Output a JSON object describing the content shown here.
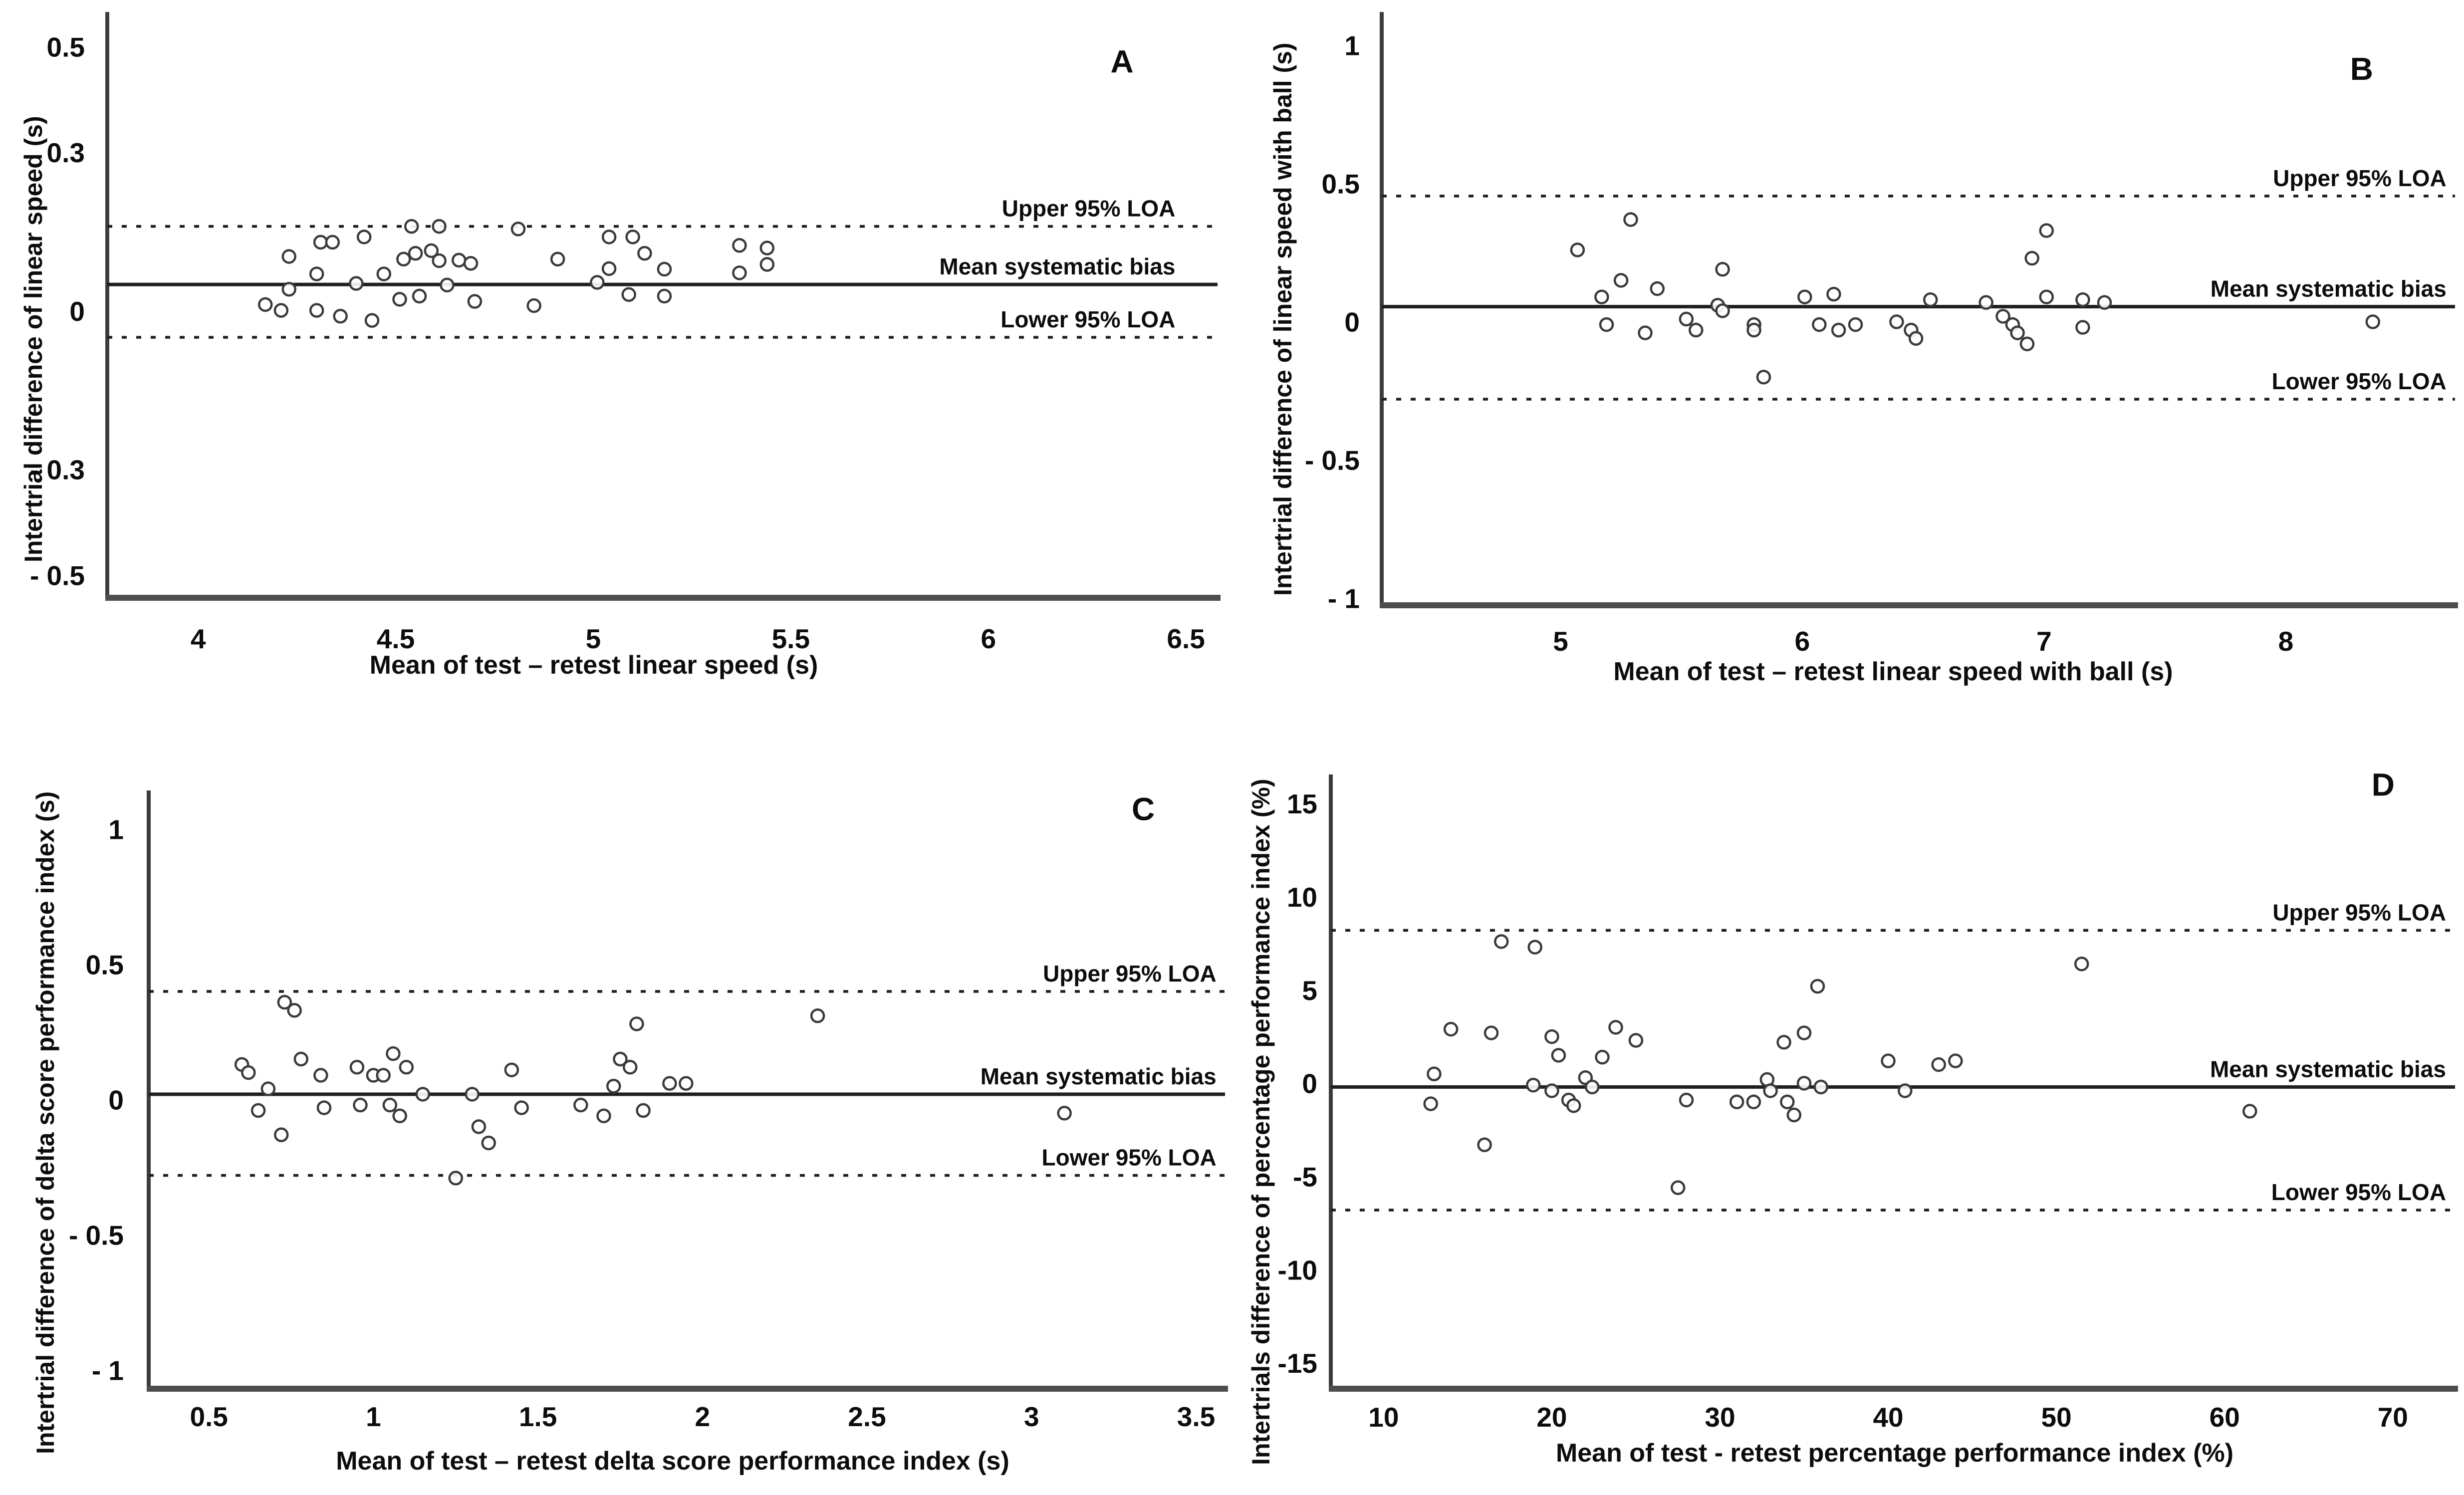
{
  "figure": {
    "background": "#ffffff",
    "text_color": "#0c0c0c",
    "line_color": "#222222",
    "point_stroke": "#3a3a3a",
    "annotation_labels": [
      "Upper 95% LOA",
      "Mean systematic bias",
      "Lower 95% LOA"
    ]
  },
  "panels": [
    {
      "id": "A",
      "letter": "A",
      "y_label": "Intertrial difference of linear speed (s)",
      "x_label": "Mean of test – retest linear speed (s)",
      "chart_data": {
        "type": "scatter",
        "xlabel": "Mean of test – retest linear speed (s)",
        "ylabel": "Intertrial difference of linear speed (s)",
        "xlim": [
          3.77,
          6.58
        ],
        "ylim": [
          -0.54,
          0.56
        ],
        "x_ticks": [
          4,
          4.5,
          5,
          5.5,
          6,
          6.5
        ],
        "x_tick_labels": [
          "4",
          "4.5",
          "5",
          "5.5",
          "6",
          "6.5"
        ],
        "y_ticks": [
          0.5,
          0.3,
          0,
          -0.3,
          -0.5
        ],
        "y_tick_labels": [
          "0.5",
          "0.3",
          "0",
          "- 0.3",
          "- 0.5"
        ],
        "grid": false,
        "upper_loa": {
          "label": "Upper 95% LOA",
          "value": 0.16
        },
        "mean_bias": {
          "label": "Mean systematic bias",
          "value": 0.05
        },
        "lower_loa": {
          "label": "Lower 95% LOA",
          "value": -0.05
        },
        "points": [
          [
            4.17,
            0.012
          ],
          [
            4.21,
            0.001
          ],
          [
            4.23,
            0.103
          ],
          [
            4.23,
            0.041
          ],
          [
            4.3,
            0.07
          ],
          [
            4.3,
            0.001
          ],
          [
            4.31,
            0.13
          ],
          [
            4.34,
            0.13
          ],
          [
            4.36,
            -0.01
          ],
          [
            4.4,
            0.052
          ],
          [
            4.42,
            0.14
          ],
          [
            4.44,
            -0.018
          ],
          [
            4.47,
            0.07
          ],
          [
            4.51,
            0.022
          ],
          [
            4.52,
            0.098
          ],
          [
            4.54,
            0.16
          ],
          [
            4.55,
            0.109
          ],
          [
            4.56,
            0.028
          ],
          [
            4.59,
            0.114
          ],
          [
            4.61,
            0.16
          ],
          [
            4.61,
            0.095
          ],
          [
            4.63,
            0.049
          ],
          [
            4.66,
            0.096
          ],
          [
            4.69,
            0.09
          ],
          [
            4.7,
            0.018
          ],
          [
            4.81,
            0.155
          ],
          [
            4.85,
            0.01
          ],
          [
            4.91,
            0.098
          ],
          [
            5.01,
            0.054
          ],
          [
            5.04,
            0.14
          ],
          [
            5.04,
            0.08
          ],
          [
            5.09,
            0.031
          ],
          [
            5.1,
            0.14
          ],
          [
            5.13,
            0.109
          ],
          [
            5.18,
            0.079
          ],
          [
            5.18,
            0.028
          ],
          [
            5.37,
            0.124
          ],
          [
            5.37,
            0.072
          ],
          [
            5.44,
            0.119
          ],
          [
            5.44,
            0.088
          ]
        ]
      }
    },
    {
      "id": "B",
      "letter": "B",
      "y_label": "Intertrial difference of linear speed with ball (s)",
      "x_label": "Mean of test – retest linear speed with ball (s)",
      "chart_data": {
        "type": "scatter",
        "xlabel": "Mean of test – retest linear speed with ball (s)",
        "ylabel": "Intertrial difference of linear speed with ball (s)",
        "xlim": [
          4.26,
          8.7
        ],
        "ylim": [
          -1.02,
          1.11
        ],
        "x_ticks": [
          5,
          6,
          7,
          8
        ],
        "x_tick_labels": [
          "5",
          "6",
          "7",
          "8"
        ],
        "y_ticks": [
          1,
          0.5,
          0,
          -0.5,
          -1
        ],
        "y_tick_labels": [
          "1",
          "0.5",
          "0",
          "- 0.5",
          "- 1"
        ],
        "grid": false,
        "upper_loa": {
          "label": "Upper 95% LOA",
          "value": 0.455
        },
        "mean_bias": {
          "label": "Mean systematic bias",
          "value": 0.055
        },
        "lower_loa": {
          "label": "Lower 95% LOA",
          "value": -0.28
        },
        "points": [
          [
            5.07,
            0.26
          ],
          [
            5.29,
            0.37
          ],
          [
            5.17,
            0.09
          ],
          [
            5.19,
            -0.01
          ],
          [
            5.25,
            0.15
          ],
          [
            5.35,
            -0.04
          ],
          [
            5.4,
            0.12
          ],
          [
            5.52,
            0.01
          ],
          [
            5.56,
            -0.03
          ],
          [
            5.65,
            0.06
          ],
          [
            5.67,
            0.19
          ],
          [
            5.67,
            0.04
          ],
          [
            5.8,
            -0.01
          ],
          [
            5.8,
            -0.03
          ],
          [
            5.84,
            -0.2
          ],
          [
            6.01,
            0.09
          ],
          [
            6.07,
            -0.01
          ],
          [
            6.13,
            0.1
          ],
          [
            6.15,
            -0.03
          ],
          [
            6.22,
            -0.01
          ],
          [
            6.39,
            0.0
          ],
          [
            6.45,
            -0.03
          ],
          [
            6.47,
            -0.06
          ],
          [
            6.53,
            0.08
          ],
          [
            6.76,
            0.07
          ],
          [
            6.83,
            0.02
          ],
          [
            6.87,
            -0.01
          ],
          [
            6.89,
            -0.04
          ],
          [
            6.93,
            -0.08
          ],
          [
            6.95,
            0.23
          ],
          [
            7.01,
            0.33
          ],
          [
            7.01,
            0.09
          ],
          [
            7.16,
            0.08
          ],
          [
            7.16,
            -0.02
          ],
          [
            7.25,
            0.07
          ],
          [
            8.36,
            0.0
          ]
        ]
      }
    },
    {
      "id": "C",
      "letter": "C",
      "y_label": "Intertrial difference of delta score performance index (s)",
      "x_label": "Mean of test – retest delta score performance index (s)",
      "chart_data": {
        "type": "scatter",
        "xlabel": "Mean of test – retest delta score performance index (s)",
        "ylabel": "Intertrial difference of delta score performance index (s)",
        "xlim": [
          0.317,
          3.588
        ],
        "ylim": [
          -1.063,
          1.132
        ],
        "x_ticks": [
          0.5,
          1,
          1.5,
          2,
          2.5,
          3,
          3.5
        ],
        "x_tick_labels": [
          "0.5",
          "1",
          "1.5",
          "2",
          "2.5",
          "3",
          "3.5"
        ],
        "y_ticks": [
          1,
          0.5,
          0,
          -0.5,
          -1
        ],
        "y_tick_labels": [
          "1",
          "0.5",
          "0",
          "- 0.5",
          "- 1"
        ],
        "grid": false,
        "upper_loa": {
          "label": "Upper 95% LOA",
          "value": 0.4
        },
        "mean_bias": {
          "label": "Mean systematic bias",
          "value": 0.02
        },
        "lower_loa": {
          "label": "Lower 95% LOA",
          "value": -0.28
        },
        "points": [
          [
            0.6,
            0.13
          ],
          [
            0.62,
            0.1
          ],
          [
            0.65,
            -0.04
          ],
          [
            0.68,
            0.04
          ],
          [
            0.72,
            -0.13
          ],
          [
            0.73,
            0.36
          ],
          [
            0.76,
            0.33
          ],
          [
            0.78,
            0.15
          ],
          [
            0.84,
            0.09
          ],
          [
            0.85,
            -0.03
          ],
          [
            0.95,
            0.12
          ],
          [
            0.96,
            -0.02
          ],
          [
            1.0,
            0.09
          ],
          [
            1.03,
            0.09
          ],
          [
            1.05,
            -0.02
          ],
          [
            1.06,
            0.17
          ],
          [
            1.08,
            -0.06
          ],
          [
            1.1,
            0.12
          ],
          [
            1.15,
            0.02
          ],
          [
            1.25,
            -0.29
          ],
          [
            1.3,
            0.02
          ],
          [
            1.32,
            -0.1
          ],
          [
            1.35,
            -0.16
          ],
          [
            1.42,
            0.11
          ],
          [
            1.45,
            -0.03
          ],
          [
            1.63,
            -0.02
          ],
          [
            1.7,
            -0.06
          ],
          [
            1.73,
            0.05
          ],
          [
            1.75,
            0.15
          ],
          [
            1.78,
            0.12
          ],
          [
            1.8,
            0.28
          ],
          [
            1.82,
            -0.04
          ],
          [
            1.9,
            0.06
          ],
          [
            1.95,
            0.06
          ],
          [
            2.35,
            0.31
          ],
          [
            3.1,
            -0.05
          ]
        ]
      }
    },
    {
      "id": "D",
      "letter": "D",
      "y_label": "Intertrials difference of percentage performance index (%)",
      "x_label": "Mean of test - retest percentage performance index (%)",
      "chart_data": {
        "type": "scatter",
        "xlabel": "Mean of test - retest percentage performance index (%)",
        "ylabel": "Intertrials difference of percentage performance index (%)",
        "xlim": [
          6.86,
          73.7
        ],
        "ylim": [
          -16.3,
          16.4
        ],
        "x_ticks": [
          10,
          20,
          30,
          40,
          50,
          60,
          70
        ],
        "x_tick_labels": [
          "10",
          "20",
          "30",
          "40",
          "50",
          "60",
          "70"
        ],
        "y_ticks": [
          15,
          10,
          5,
          0,
          -5,
          -10,
          -15
        ],
        "y_tick_labels": [
          "15",
          "10",
          "5",
          "0",
          "-5",
          "-10",
          "-15"
        ],
        "grid": false,
        "upper_loa": {
          "label": "Upper 95% LOA",
          "value": 8.2
        },
        "mean_bias": {
          "label": "Mean systematic bias",
          "value": -0.2
        },
        "lower_loa": {
          "label": "Lower 95% LOA",
          "value": -6.8
        },
        "points": [
          [
            13,
            0.5
          ],
          [
            12.8,
            -1.1
          ],
          [
            14,
            2.9
          ],
          [
            16.4,
            2.7
          ],
          [
            16,
            -3.3
          ],
          [
            17,
            7.6
          ],
          [
            19,
            7.3
          ],
          [
            18.9,
            -0.1
          ],
          [
            20,
            2.5
          ],
          [
            20,
            -0.4
          ],
          [
            20.4,
            1.5
          ],
          [
            21,
            -0.9
          ],
          [
            21.3,
            -1.2
          ],
          [
            22,
            0.3
          ],
          [
            22.4,
            -0.2
          ],
          [
            23,
            1.4
          ],
          [
            23.8,
            3.0
          ],
          [
            25,
            2.3
          ],
          [
            27.5,
            -5.6
          ],
          [
            28,
            -0.9
          ],
          [
            31,
            -1.0
          ],
          [
            32,
            -1.0
          ],
          [
            32.8,
            0.2
          ],
          [
            33,
            -0.4
          ],
          [
            33.8,
            2.2
          ],
          [
            34,
            -1.0
          ],
          [
            34.4,
            -1.7
          ],
          [
            35,
            2.7
          ],
          [
            35,
            0.0
          ],
          [
            35.8,
            5.2
          ],
          [
            36,
            -0.2
          ],
          [
            40,
            1.2
          ],
          [
            41,
            -0.4
          ],
          [
            43,
            1.0
          ],
          [
            44,
            1.2
          ],
          [
            51.5,
            6.4
          ],
          [
            61.5,
            -1.5
          ]
        ]
      }
    }
  ]
}
